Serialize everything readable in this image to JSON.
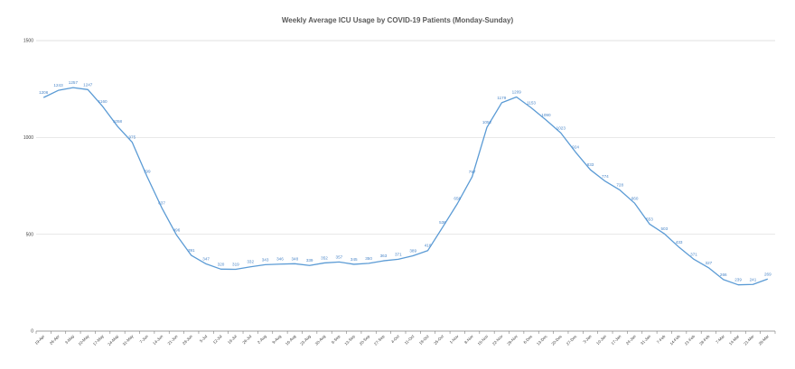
{
  "chart_data": {
    "type": "line",
    "title": "Weekly Average ICU Usage by COVID-19 Patients (Monday-Sunday)",
    "xlabel": "",
    "ylabel": "",
    "ylim": [
      0,
      1500
    ],
    "yticks": [
      0,
      500,
      1000,
      1500
    ],
    "grid": true,
    "legend": "none",
    "color": "#5b9bd5",
    "categories": [
      "19-Apr",
      "26-Apr",
      "3-May",
      "10-May",
      "17-May",
      "24-May",
      "31-May",
      "7-Jun",
      "14-Jun",
      "21-Jun",
      "28-Jun",
      "5-Jul",
      "12-Jul",
      "19-Jul",
      "26-Jul",
      "2-Aug",
      "9-Aug",
      "16-Aug",
      "23-Aug",
      "30-Aug",
      "6-Sep",
      "13-Sep",
      "20-Sep",
      "27-Sep",
      "4-Oct",
      "11-Oct",
      "18-Oct",
      "25-Oct",
      "1-Nov",
      "8-Nov",
      "15-Nov",
      "22-Nov",
      "29-Nov",
      "6-Dec",
      "13-Dec",
      "20-Dec",
      "27-Dec",
      "3-Jan",
      "10-Jan",
      "17-Jan",
      "24-Jan",
      "31-Jan",
      "7-Feb",
      "14-Feb",
      "21-Feb",
      "28-Feb",
      "7-Mar",
      "14-Mar",
      "21-Mar",
      "28-Mar"
    ],
    "values": [
      1206,
      1243,
      1257,
      1247,
      1160,
      1058,
      975,
      799,
      637,
      496,
      391,
      347,
      320,
      319,
      332,
      343,
      346,
      348,
      339,
      352,
      357,
      345,
      350,
      363,
      371,
      389,
      416,
      536,
      658,
      797,
      1052,
      1179,
      1209,
      1153,
      1090,
      1023,
      924,
      833,
      774,
      728,
      660,
      553,
      503,
      433,
      371,
      327,
      266,
      239,
      241,
      269
    ]
  }
}
